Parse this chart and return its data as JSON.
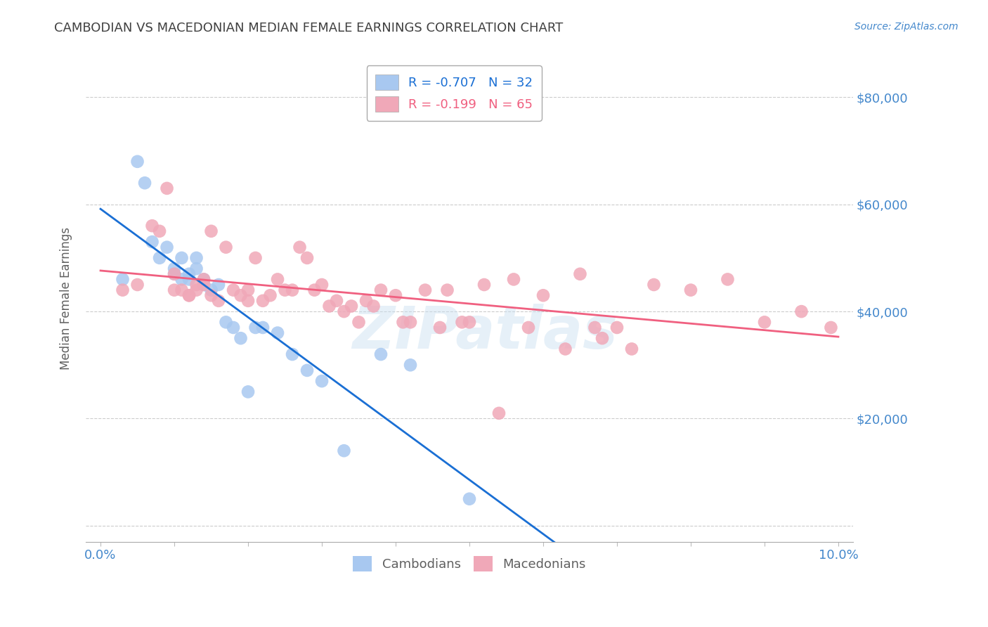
{
  "title": "CAMBODIAN VS MACEDONIAN MEDIAN FEMALE EARNINGS CORRELATION CHART",
  "source": "Source: ZipAtlas.com",
  "ylabel": "Median Female Earnings",
  "xlabel_ticks": [
    "0.0%",
    "",
    "",
    "",
    "",
    "",
    "",
    "",
    "",
    "",
    "10.0%"
  ],
  "xlabel_vals": [
    0.0,
    0.01,
    0.02,
    0.03,
    0.04,
    0.05,
    0.06,
    0.07,
    0.08,
    0.09,
    0.1
  ],
  "ytick_vals": [
    0,
    20000,
    40000,
    60000,
    80000
  ],
  "ytick_labels": [
    "",
    "$20,000",
    "$40,000",
    "$60,000",
    "$80,000"
  ],
  "legend1_label": "R = -0.707   N = 32",
  "legend2_label": "R = -0.199   N = 65",
  "legend_label1": "Cambodians",
  "legend_label2": "Macedonians",
  "watermark": "ZIPatlas",
  "cambodian_color": "#a8c8f0",
  "macedonian_color": "#f0a8b8",
  "cambodian_line_color": "#1a6fd4",
  "macedonian_line_color": "#f06080",
  "title_color": "#404040",
  "axis_label_color": "#606060",
  "tick_color": "#4488cc",
  "grid_color": "#cccccc",
  "background_color": "#ffffff",
  "cambodian_x": [
    0.003,
    0.005,
    0.006,
    0.007,
    0.008,
    0.009,
    0.01,
    0.01,
    0.011,
    0.011,
    0.012,
    0.012,
    0.013,
    0.013,
    0.014,
    0.014,
    0.015,
    0.016,
    0.017,
    0.018,
    0.019,
    0.02,
    0.021,
    0.022,
    0.024,
    0.026,
    0.028,
    0.03,
    0.033,
    0.038,
    0.042,
    0.05
  ],
  "cambodian_y": [
    46000,
    68000,
    64000,
    53000,
    50000,
    52000,
    48000,
    47000,
    50000,
    46000,
    47000,
    46000,
    48000,
    50000,
    45000,
    46000,
    44000,
    45000,
    38000,
    37000,
    35000,
    25000,
    37000,
    37000,
    36000,
    32000,
    29000,
    27000,
    14000,
    32000,
    30000,
    5000
  ],
  "macedonian_x": [
    0.003,
    0.005,
    0.007,
    0.008,
    0.009,
    0.01,
    0.01,
    0.011,
    0.012,
    0.012,
    0.013,
    0.013,
    0.014,
    0.014,
    0.015,
    0.015,
    0.016,
    0.017,
    0.018,
    0.019,
    0.02,
    0.02,
    0.021,
    0.022,
    0.023,
    0.024,
    0.025,
    0.026,
    0.027,
    0.028,
    0.029,
    0.03,
    0.031,
    0.032,
    0.033,
    0.034,
    0.035,
    0.036,
    0.037,
    0.038,
    0.04,
    0.041,
    0.042,
    0.044,
    0.046,
    0.047,
    0.049,
    0.05,
    0.052,
    0.054,
    0.056,
    0.058,
    0.06,
    0.063,
    0.065,
    0.067,
    0.068,
    0.07,
    0.072,
    0.075,
    0.08,
    0.085,
    0.09,
    0.095,
    0.099
  ],
  "macedonian_y": [
    44000,
    45000,
    56000,
    55000,
    63000,
    47000,
    44000,
    44000,
    43000,
    43000,
    44000,
    45000,
    46000,
    45000,
    55000,
    43000,
    42000,
    52000,
    44000,
    43000,
    42000,
    44000,
    50000,
    42000,
    43000,
    46000,
    44000,
    44000,
    52000,
    50000,
    44000,
    45000,
    41000,
    42000,
    40000,
    41000,
    38000,
    42000,
    41000,
    44000,
    43000,
    38000,
    38000,
    44000,
    37000,
    44000,
    38000,
    38000,
    45000,
    21000,
    46000,
    37000,
    43000,
    33000,
    47000,
    37000,
    35000,
    37000,
    33000,
    45000,
    44000,
    46000,
    38000,
    40000,
    37000
  ]
}
